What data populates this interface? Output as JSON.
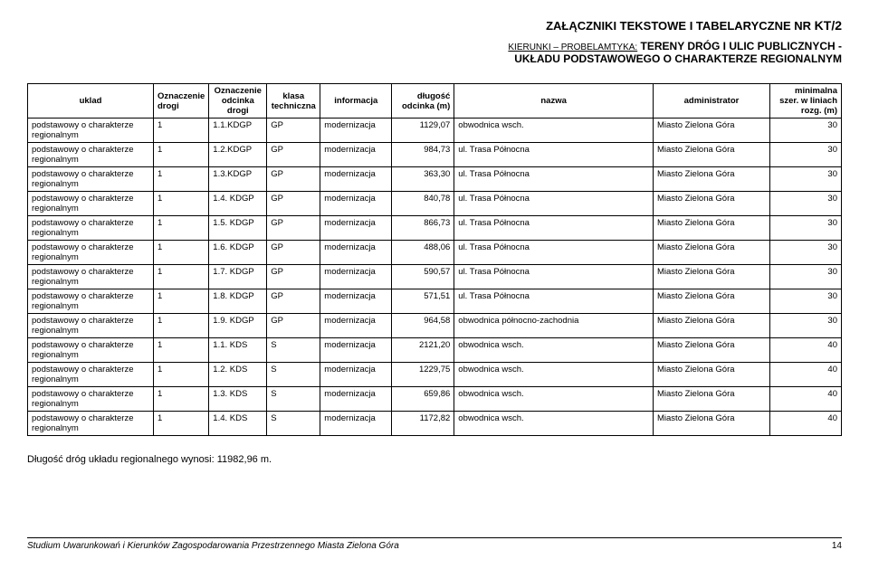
{
  "header": {
    "title_prefix": "ZAŁĄCZNIKI TEKSTOWE I TABELARYCZNE NR ",
    "title_kt": "KT/2"
  },
  "subheader": {
    "label": "KIERUNKI – PROBELAMTYKA:",
    "line1": " TERENY DRÓG I ULIC PUBLICZNYCH -",
    "line2": "UKŁADU PODSTAWOWEGO O CHARAKTERZE REGIONALNYM"
  },
  "columns": {
    "uklad": "uklad",
    "oznaczenie_drogi": "Oznaczenie drogi",
    "oznaczenie_odcinka": "Oznaczenie odcinka drogi",
    "klasa": "klasa techniczna",
    "informacja": "informacja",
    "dlugosc": "długość odcinka (m)",
    "nazwa": "nazwa",
    "administrator": "administrator",
    "min": "minimalna szer. w liniach rozg. (m)"
  },
  "row_uklad": "podstawowy o charakterze regionalnym",
  "rows": [
    {
      "ozn": "1",
      "odc": "1.1.KDGP",
      "kl": "GP",
      "inf": "modernizacja",
      "dl": "1129,07",
      "naz": "obwodnica wsch.",
      "adm": "Miasto Zielona Góra",
      "min": "30"
    },
    {
      "ozn": "1",
      "odc": "1.2.KDGP",
      "kl": "GP",
      "inf": "modernizacja",
      "dl": "984,73",
      "naz": "ul. Trasa Północna",
      "adm": "Miasto Zielona Góra",
      "min": "30"
    },
    {
      "ozn": "1",
      "odc": "1.3.KDGP",
      "kl": "GP",
      "inf": "modernizacja",
      "dl": "363,30",
      "naz": "ul. Trasa Północna",
      "adm": "Miasto Zielona Góra",
      "min": "30"
    },
    {
      "ozn": "1",
      "odc": "1.4. KDGP",
      "kl": "GP",
      "inf": "modernizacja",
      "dl": "840,78",
      "naz": "ul. Trasa Północna",
      "adm": "Miasto Zielona Góra",
      "min": "30"
    },
    {
      "ozn": "1",
      "odc": "1.5. KDGP",
      "kl": "GP",
      "inf": "modernizacja",
      "dl": "866,73",
      "naz": "ul. Trasa Północna",
      "adm": "Miasto Zielona Góra",
      "min": "30"
    },
    {
      "ozn": "1",
      "odc": "1.6. KDGP",
      "kl": "GP",
      "inf": "modernizacja",
      "dl": "488,06",
      "naz": "ul. Trasa Północna",
      "adm": "Miasto Zielona Góra",
      "min": "30"
    },
    {
      "ozn": "1",
      "odc": "1.7. KDGP",
      "kl": "GP",
      "inf": "modernizacja",
      "dl": "590,57",
      "naz": "ul. Trasa Północna",
      "adm": "Miasto Zielona Góra",
      "min": "30"
    },
    {
      "ozn": "1",
      "odc": "1.8. KDGP",
      "kl": "GP",
      "inf": "modernizacja",
      "dl": "571,51",
      "naz": "ul. Trasa Północna",
      "adm": "Miasto Zielona Góra",
      "min": "30"
    },
    {
      "ozn": "1",
      "odc": "1.9. KDGP",
      "kl": "GP",
      "inf": "modernizacja",
      "dl": "964,58",
      "naz": "obwodnica północno-zachodnia",
      "adm": "Miasto Zielona Góra",
      "min": "30"
    },
    {
      "ozn": "1",
      "odc": "1.1. KDS",
      "kl": "S",
      "inf": "modernizacja",
      "dl": "2121,20",
      "naz": "obwodnica wsch.",
      "adm": "Miasto Zielona Góra",
      "min": "40"
    },
    {
      "ozn": "1",
      "odc": "1.2. KDS",
      "kl": "S",
      "inf": "modernizacja",
      "dl": "1229,75",
      "naz": "obwodnica wsch.",
      "adm": "Miasto Zielona Góra",
      "min": "40"
    },
    {
      "ozn": "1",
      "odc": "1.3. KDS",
      "kl": "S",
      "inf": "modernizacja",
      "dl": "659,86",
      "naz": "obwodnica wsch.",
      "adm": "Miasto Zielona Góra",
      "min": "40"
    },
    {
      "ozn": "1",
      "odc": "1.4. KDS",
      "kl": "S",
      "inf": "modernizacja",
      "dl": "1172,82",
      "naz": "obwodnica wsch.",
      "adm": "Miasto Zielona Góra",
      "min": "40"
    }
  ],
  "summary": "Długość dróg układu regionalnego wynosi: 11982,96 m.",
  "footer": {
    "text": "Studium Uwarunkowań i Kierunków Zagospodarowania Przestrzennego Miasta Zielona Góra",
    "page": "14"
  }
}
